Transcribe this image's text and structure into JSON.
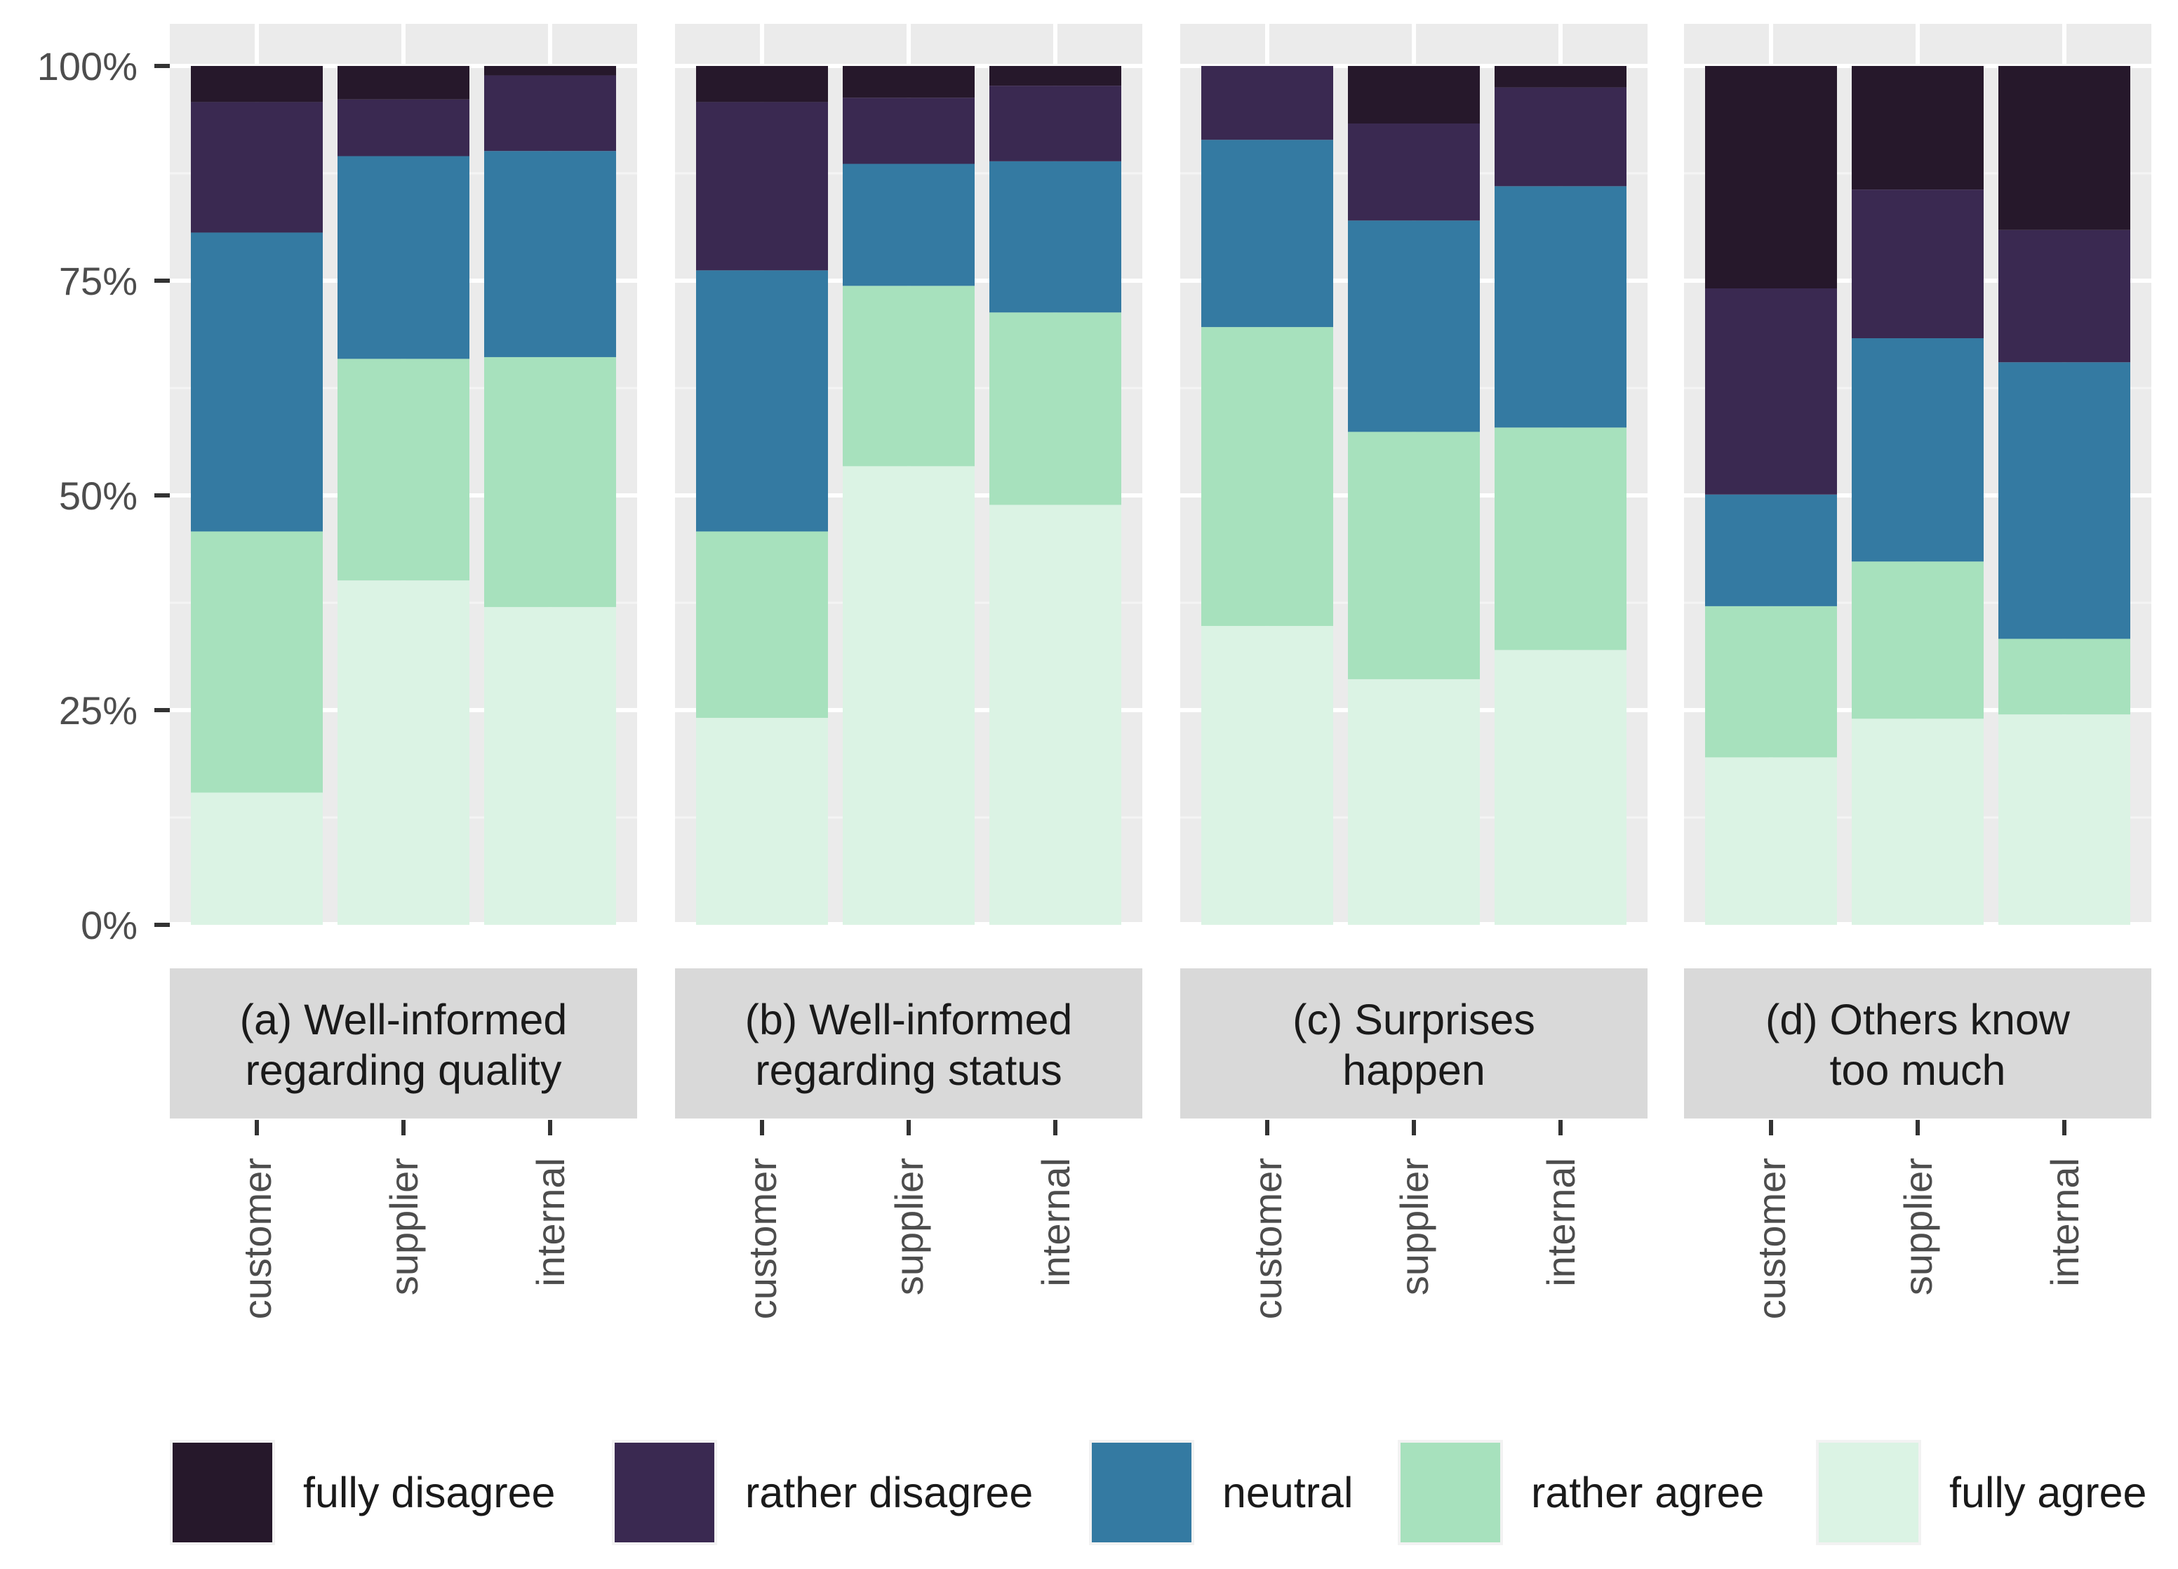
{
  "chart_data": {
    "type": "bar",
    "stacked": true,
    "percent": true,
    "title": "",
    "xlabel": "",
    "ylabel": "",
    "ylim": [
      0,
      100
    ],
    "y_ticks": [
      0,
      25,
      50,
      75,
      100
    ],
    "y_tick_labels": [
      "0%",
      "25%",
      "50%",
      "75%",
      "100%"
    ],
    "grid": true,
    "legend_position": "bottom",
    "categories": [
      "customer",
      "supplier",
      "internal"
    ],
    "series_order_bottom_to_top": [
      "fully agree",
      "rather agree",
      "neutral",
      "rather disagree",
      "fully disagree"
    ],
    "legend": [
      {
        "name": "fully disagree",
        "color": "#26182b"
      },
      {
        "name": "rather disagree",
        "color": "#3a2951"
      },
      {
        "name": "neutral",
        "color": "#347aa2"
      },
      {
        "name": "rather agree",
        "color": "#a7e1bd"
      },
      {
        "name": "fully agree",
        "color": "#dbf3e4"
      }
    ],
    "panels": [
      {
        "label_line1": "(a) Well-informed",
        "label_line2": "regarding quality",
        "bars": {
          "customer": {
            "fully agree": 15.4,
            "rather agree": 30.4,
            "neutral": 34.8,
            "rather disagree": 15.2,
            "fully disagree": 4.2
          },
          "supplier": {
            "fully agree": 40.1,
            "rather agree": 25.8,
            "neutral": 23.6,
            "rather disagree": 6.6,
            "fully disagree": 3.9
          },
          "internal": {
            "fully agree": 37.0,
            "rather agree": 29.1,
            "neutral": 24.0,
            "rather disagree": 8.8,
            "fully disagree": 1.1
          }
        }
      },
      {
        "label_line1": "(b) Well-informed",
        "label_line2": "regarding status",
        "bars": {
          "customer": {
            "fully agree": 24.1,
            "rather agree": 21.7,
            "neutral": 30.4,
            "rather disagree": 19.6,
            "fully disagree": 4.2
          },
          "supplier": {
            "fully agree": 53.4,
            "rather agree": 21.0,
            "neutral": 14.2,
            "rather disagree": 7.7,
            "fully disagree": 3.7
          },
          "internal": {
            "fully agree": 48.9,
            "rather agree": 22.4,
            "neutral": 17.6,
            "rather disagree": 8.8,
            "fully disagree": 2.3
          }
        }
      },
      {
        "label_line1": "(c) Surprises",
        "label_line2": "happen",
        "bars": {
          "customer": {
            "fully agree": 34.8,
            "rather agree": 34.8,
            "neutral": 21.8,
            "rather disagree": 8.6,
            "fully disagree": 0.0
          },
          "supplier": {
            "fully agree": 28.6,
            "rather agree": 28.8,
            "neutral": 24.6,
            "rather disagree": 11.3,
            "fully disagree": 6.7
          },
          "internal": {
            "fully agree": 32.0,
            "rather agree": 25.9,
            "neutral": 28.1,
            "rather disagree": 11.5,
            "fully disagree": 2.5
          }
        }
      },
      {
        "label_line1": "(d) Others know",
        "label_line2": "too much",
        "bars": {
          "customer": {
            "fully agree": 19.5,
            "rather agree": 17.6,
            "neutral": 13.0,
            "rather disagree": 24.0,
            "fully disagree": 25.9
          },
          "supplier": {
            "fully agree": 24.0,
            "rather agree": 18.3,
            "neutral": 26.0,
            "rather disagree": 17.3,
            "fully disagree": 14.4
          },
          "internal": {
            "fully agree": 24.5,
            "rather agree": 8.8,
            "neutral": 32.2,
            "rather disagree": 15.4,
            "fully disagree": 19.1
          }
        }
      }
    ]
  }
}
